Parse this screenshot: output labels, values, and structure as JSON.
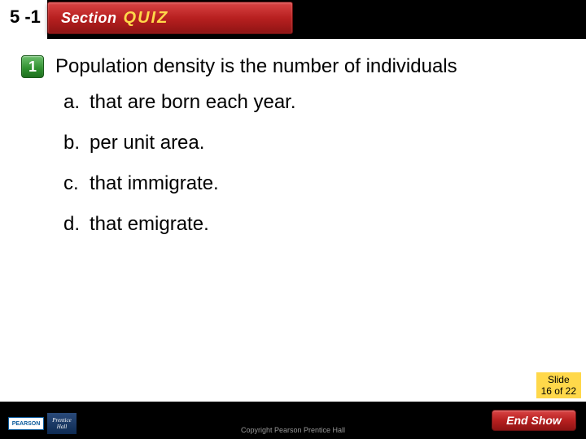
{
  "header": {
    "section_number": "5 -1",
    "badge_section": "Section",
    "badge_quiz": "QUIZ"
  },
  "question": {
    "number": "1",
    "text": "Population density is the number of individuals"
  },
  "options": [
    {
      "letter": "a.",
      "text": "that are born each year."
    },
    {
      "letter": "b.",
      "text": "per unit area."
    },
    {
      "letter": "c.",
      "text": "that immigrate."
    },
    {
      "letter": "d.",
      "text": "that emigrate."
    }
  ],
  "footer": {
    "slide_label": "Slide",
    "slide_count": "16 of 22",
    "end_show": "End Show",
    "copyright": "Copyright Pearson Prentice Hall",
    "logo_pearson": "PEARSON",
    "logo_prentice": "Prentice",
    "logo_hall": "Hall"
  },
  "colors": {
    "badge_red_top": "#d94545",
    "badge_red_bottom": "#8f1414",
    "quiz_yellow": "#ffd84a",
    "num_green_top": "#6fc06f",
    "num_green_bottom": "#1f6f1f",
    "black": "#000000",
    "white": "#ffffff"
  }
}
